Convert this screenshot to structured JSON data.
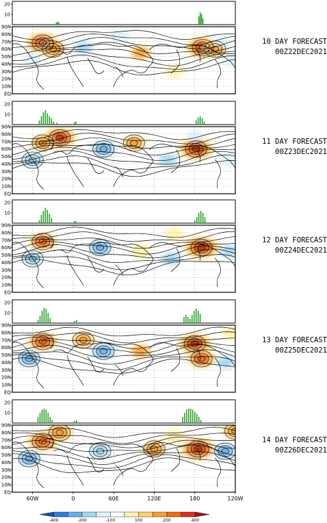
{
  "chart_data": {
    "type": "heatmap",
    "description_units": "500-hPa height anomaly (shaded) with blocking-frequency histograms above each map",
    "x_tick_labels": [
      "60W",
      "0",
      "60E",
      "120E",
      "180",
      "120W"
    ],
    "y_tick_labels": [
      "EQ",
      "10N",
      "20N",
      "30N",
      "40N",
      "50N",
      "60N",
      "70N",
      "80N",
      "90N"
    ],
    "hist_ylim": [
      0,
      20
    ],
    "hist_tick_labels": [
      "10",
      "20"
    ],
    "colorbar": {
      "levels": [
        -400,
        -200,
        -100,
        100,
        200,
        400
      ],
      "labels": [
        "-400",
        "-200",
        "-100",
        "100",
        "200",
        "400"
      ],
      "colors": [
        "#1a50a8",
        "#2f7ed8",
        "#6aaee8",
        "#a8d8f0",
        "#e0f4fc",
        "#ffffff",
        "#fff3b0",
        "#fdd26a",
        "#f6a033",
        "#ef6a1a",
        "#d7301f",
        "#a50f15"
      ]
    },
    "panels": [
      {
        "title": "10 DAY FORECAST",
        "date": "00Z22DEC2021",
        "hist": [
          {
            "lon": -25,
            "value": 2
          },
          {
            "lon": -23,
            "value": 3
          },
          {
            "lon": -21,
            "value": 2
          },
          {
            "lon": 186,
            "value": 8
          },
          {
            "lon": 188,
            "value": 12
          },
          {
            "lon": 190,
            "value": 10
          },
          {
            "lon": 192,
            "value": 6
          }
        ]
      },
      {
        "title": "11 DAY FORECAST",
        "date": "00Z23DEC2021",
        "hist": [
          {
            "lon": -50,
            "value": 4
          },
          {
            "lon": -47,
            "value": 8
          },
          {
            "lon": -44,
            "value": 12
          },
          {
            "lon": -41,
            "value": 14
          },
          {
            "lon": -38,
            "value": 11
          },
          {
            "lon": -35,
            "value": 8
          },
          {
            "lon": -32,
            "value": 6
          },
          {
            "lon": -29,
            "value": 3
          },
          {
            "lon": -24,
            "value": 2
          },
          {
            "lon": 2,
            "value": 2
          },
          {
            "lon": 4,
            "value": 3
          },
          {
            "lon": 182,
            "value": 4
          },
          {
            "lon": 185,
            "value": 7
          },
          {
            "lon": 188,
            "value": 8
          },
          {
            "lon": 191,
            "value": 6
          },
          {
            "lon": 194,
            "value": 3
          }
        ]
      },
      {
        "title": "12 DAY FORECAST",
        "date": "00Z24DEC2021",
        "hist": [
          {
            "lon": -50,
            "value": 3
          },
          {
            "lon": -47,
            "value": 8
          },
          {
            "lon": -44,
            "value": 12
          },
          {
            "lon": -41,
            "value": 15
          },
          {
            "lon": -38,
            "value": 13
          },
          {
            "lon": -35,
            "value": 9
          },
          {
            "lon": -32,
            "value": 5
          },
          {
            "lon": 2,
            "value": 2
          },
          {
            "lon": 4,
            "value": 2
          },
          {
            "lon": 180,
            "value": 3
          },
          {
            "lon": 183,
            "value": 6
          },
          {
            "lon": 186,
            "value": 10
          },
          {
            "lon": 189,
            "value": 12
          },
          {
            "lon": 192,
            "value": 10
          },
          {
            "lon": 195,
            "value": 6
          }
        ]
      },
      {
        "title": "13 DAY FORECAST",
        "date": "00Z25DEC2021",
        "hist": [
          {
            "lon": -52,
            "value": 3
          },
          {
            "lon": -49,
            "value": 7
          },
          {
            "lon": -46,
            "value": 12
          },
          {
            "lon": -43,
            "value": 15
          },
          {
            "lon": -40,
            "value": 14
          },
          {
            "lon": -37,
            "value": 10
          },
          {
            "lon": -34,
            "value": 5
          },
          {
            "lon": 2,
            "value": 2
          },
          {
            "lon": 5,
            "value": 3
          },
          {
            "lon": 164,
            "value": 6
          },
          {
            "lon": 167,
            "value": 8
          },
          {
            "lon": 170,
            "value": 6
          },
          {
            "lon": 173,
            "value": 4
          },
          {
            "lon": 176,
            "value": 8
          },
          {
            "lon": 179,
            "value": 12
          },
          {
            "lon": 182,
            "value": 14
          },
          {
            "lon": 185,
            "value": 12
          },
          {
            "lon": 188,
            "value": 9
          }
        ]
      },
      {
        "title": "14 DAY FORECAST",
        "date": "00Z26DEC2021",
        "hist": [
          {
            "lon": -52,
            "value": 6
          },
          {
            "lon": -49,
            "value": 10
          },
          {
            "lon": -46,
            "value": 13
          },
          {
            "lon": -43,
            "value": 14
          },
          {
            "lon": -40,
            "value": 13
          },
          {
            "lon": -37,
            "value": 10
          },
          {
            "lon": -34,
            "value": 6
          },
          {
            "lon": -31,
            "value": 3
          },
          {
            "lon": 2,
            "value": 2
          },
          {
            "lon": 5,
            "value": 3
          },
          {
            "lon": 162,
            "value": 6
          },
          {
            "lon": 165,
            "value": 10
          },
          {
            "lon": 168,
            "value": 13
          },
          {
            "lon": 171,
            "value": 14
          },
          {
            "lon": 174,
            "value": 14
          },
          {
            "lon": 177,
            "value": 13
          },
          {
            "lon": 180,
            "value": 11
          },
          {
            "lon": 183,
            "value": 9
          },
          {
            "lon": 186,
            "value": 6
          },
          {
            "lon": 189,
            "value": 3
          }
        ]
      }
    ],
    "anomalies": [
      [
        {
          "lon": -45,
          "lat": 68,
          "v": 380
        },
        {
          "lon": -30,
          "lat": 60,
          "v": 260
        },
        {
          "lon": -60,
          "lat": 45,
          "v": -120
        },
        {
          "lon": 15,
          "lat": 62,
          "v": -160
        },
        {
          "lon": 70,
          "lat": 78,
          "v": -120
        },
        {
          "lon": 100,
          "lat": 55,
          "v": 180
        },
        {
          "lon": 150,
          "lat": 30,
          "v": 120
        },
        {
          "lon": 192,
          "lat": 62,
          "v": 400
        },
        {
          "lon": 210,
          "lat": 60,
          "v": 220
        },
        {
          "lon": 220,
          "lat": 72,
          "v": -110
        },
        {
          "lon": 232,
          "lat": 45,
          "v": -130
        }
      ],
      [
        {
          "lon": -20,
          "lat": 75,
          "v": 380
        },
        {
          "lon": -45,
          "lat": 68,
          "v": 220
        },
        {
          "lon": -60,
          "lat": 45,
          "v": -200
        },
        {
          "lon": 45,
          "lat": 60,
          "v": -260
        },
        {
          "lon": 90,
          "lat": 68,
          "v": 200
        },
        {
          "lon": 140,
          "lat": 45,
          "v": -180
        },
        {
          "lon": 182,
          "lat": 60,
          "v": 400
        },
        {
          "lon": 180,
          "lat": 78,
          "v": -110
        },
        {
          "lon": 230,
          "lat": 45,
          "v": -120
        }
      ],
      [
        {
          "lon": -45,
          "lat": 68,
          "v": 280
        },
        {
          "lon": -60,
          "lat": 45,
          "v": -200
        },
        {
          "lon": 40,
          "lat": 60,
          "v": -250
        },
        {
          "lon": 100,
          "lat": 55,
          "v": 160
        },
        {
          "lon": 145,
          "lat": 45,
          "v": -170
        },
        {
          "lon": 190,
          "lat": 60,
          "v": 420
        },
        {
          "lon": 150,
          "lat": 78,
          "v": 130
        },
        {
          "lon": 230,
          "lat": 55,
          "v": -150
        }
      ],
      [
        {
          "lon": -45,
          "lat": 68,
          "v": 320
        },
        {
          "lon": -65,
          "lat": 45,
          "v": -240
        },
        {
          "lon": 15,
          "lat": 70,
          "v": 200
        },
        {
          "lon": 45,
          "lat": 55,
          "v": -250
        },
        {
          "lon": 100,
          "lat": 55,
          "v": 180
        },
        {
          "lon": 180,
          "lat": 65,
          "v": 380
        },
        {
          "lon": 190,
          "lat": 45,
          "v": 300
        },
        {
          "lon": 225,
          "lat": 40,
          "v": -160
        },
        {
          "lon": 235,
          "lat": 80,
          "v": 150
        }
      ],
      [
        {
          "lon": -45,
          "lat": 68,
          "v": 340
        },
        {
          "lon": -20,
          "lat": 80,
          "v": 260
        },
        {
          "lon": -65,
          "lat": 45,
          "v": -240
        },
        {
          "lon": 40,
          "lat": 55,
          "v": -200
        },
        {
          "lon": 120,
          "lat": 58,
          "v": 220
        },
        {
          "lon": 150,
          "lat": 75,
          "v": 150
        },
        {
          "lon": 185,
          "lat": 58,
          "v": 420
        },
        {
          "lon": 225,
          "lat": 55,
          "v": -240
        },
        {
          "lon": 240,
          "lat": 82,
          "v": 240
        }
      ]
    ]
  }
}
